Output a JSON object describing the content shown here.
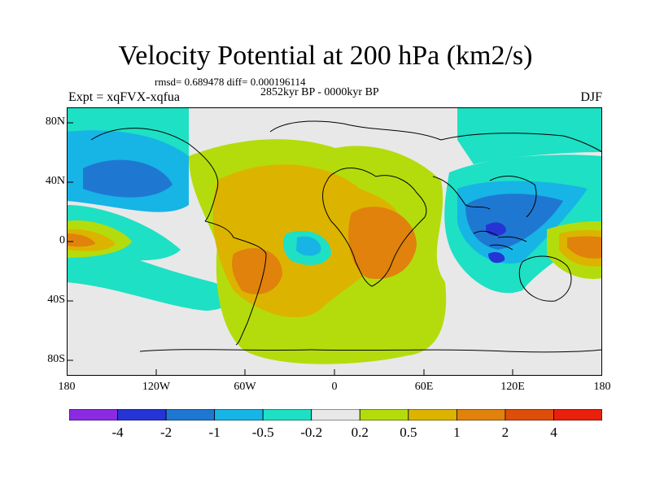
{
  "title": "Velocity Potential at 200 hPa (km2/s)",
  "stats_line": "rmsd= 0.689478 diff= 0.000196114",
  "period": "2852kyr BP - 0000kyr BP",
  "experiment": "Expt = xqFVX-xqfua",
  "season": "DJF",
  "axes": {
    "y_ticks": [
      "80N",
      "40N",
      "0",
      "40S",
      "80S"
    ],
    "x_ticks": [
      "180",
      "120W",
      "60W",
      "0",
      "60E",
      "120E",
      "180"
    ]
  },
  "colorbar": {
    "colors": [
      "#8a2be2",
      "#2634d6",
      "#1e78d2",
      "#17b4e6",
      "#1ee0c4",
      "#e8e8e8",
      "#b4dc0c",
      "#dcb400",
      "#e0820c",
      "#dd4e0a",
      "#e8200c"
    ],
    "labels": [
      "-4",
      "-2",
      "-1",
      "-0.5",
      "-0.2",
      "0.2",
      "0.5",
      "1",
      "2",
      "4"
    ]
  }
}
